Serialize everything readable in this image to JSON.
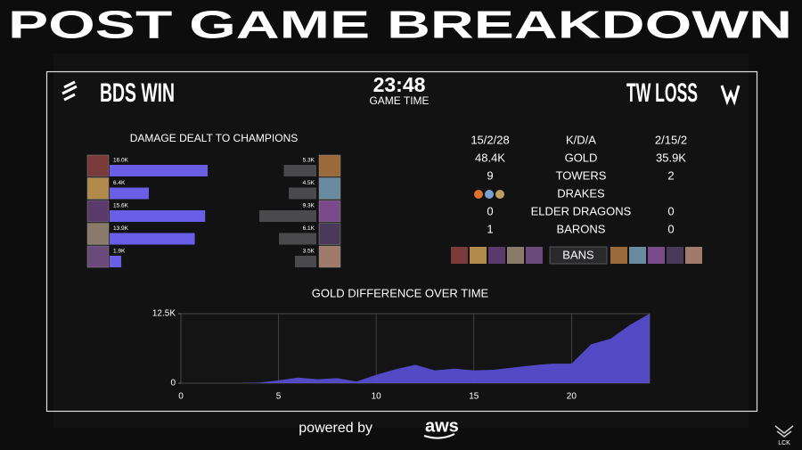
{
  "header": {
    "title": "POST GAME BREAKDOWN"
  },
  "game": {
    "left_team": "BDS WIN",
    "right_team": "TW LOSS",
    "time": "23:48",
    "time_label": "GAME TIME"
  },
  "stats": {
    "rows": [
      {
        "left": "15/2/28",
        "label": "K/D/A",
        "right": "2/15/2"
      },
      {
        "left": "48.4K",
        "label": "GOLD",
        "right": "35.9K"
      },
      {
        "left": "9",
        "label": "TOWERS",
        "right": "2"
      },
      {
        "label": "DRAKES"
      },
      {
        "left": "0",
        "label": "ELDER DRAGONS",
        "right": "0"
      },
      {
        "left": "1",
        "label": "BARONS",
        "right": "0"
      }
    ],
    "bans_label": "BANS"
  },
  "footer": {
    "powered": "powered by",
    "brand": "aws",
    "league": "LCK"
  },
  "chart_data": [
    {
      "type": "bar",
      "orientation": "horizontal",
      "title": "DAMAGE DEALT TO CHAMPIONS",
      "series": [
        {
          "color": "#6a5ee6",
          "values": [
            16000,
            6400,
            15600,
            13900,
            1900
          ],
          "value_labels": [
            "16.0K",
            "6.4K",
            "15.6K",
            "13.9K",
            "1.9K"
          ]
        },
        {
          "color": "#4a4a4c",
          "values": [
            5300,
            4500,
            9300,
            6100,
            3500
          ],
          "value_labels": [
            "5.3K",
            "4.5K",
            "9.3K",
            "6.1K",
            "3.5K"
          ]
        }
      ]
    },
    {
      "type": "area",
      "title": "GOLD DIFFERENCE OVER TIME",
      "color": "#5a4fd8",
      "x": [
        0,
        1,
        2,
        3,
        4,
        5,
        6,
        7,
        8,
        9,
        10,
        11,
        12,
        13,
        14,
        15,
        16,
        17,
        18,
        19,
        20,
        21,
        22,
        23,
        24
      ],
      "values": [
        0,
        0,
        0,
        0,
        100,
        500,
        1000,
        700,
        900,
        300,
        1500,
        2500,
        3300,
        2300,
        2600,
        2300,
        2400,
        2800,
        3200,
        3500,
        3500,
        7000,
        8000,
        10500,
        12500
      ],
      "xlim": [
        0,
        24
      ],
      "ylim": [
        0,
        12500
      ],
      "xticks": [
        0,
        5,
        10,
        15,
        20
      ],
      "yticks": [
        0,
        {
          "value": 12500,
          "label": "12.5K"
        }
      ],
      "grid": true
    }
  ]
}
